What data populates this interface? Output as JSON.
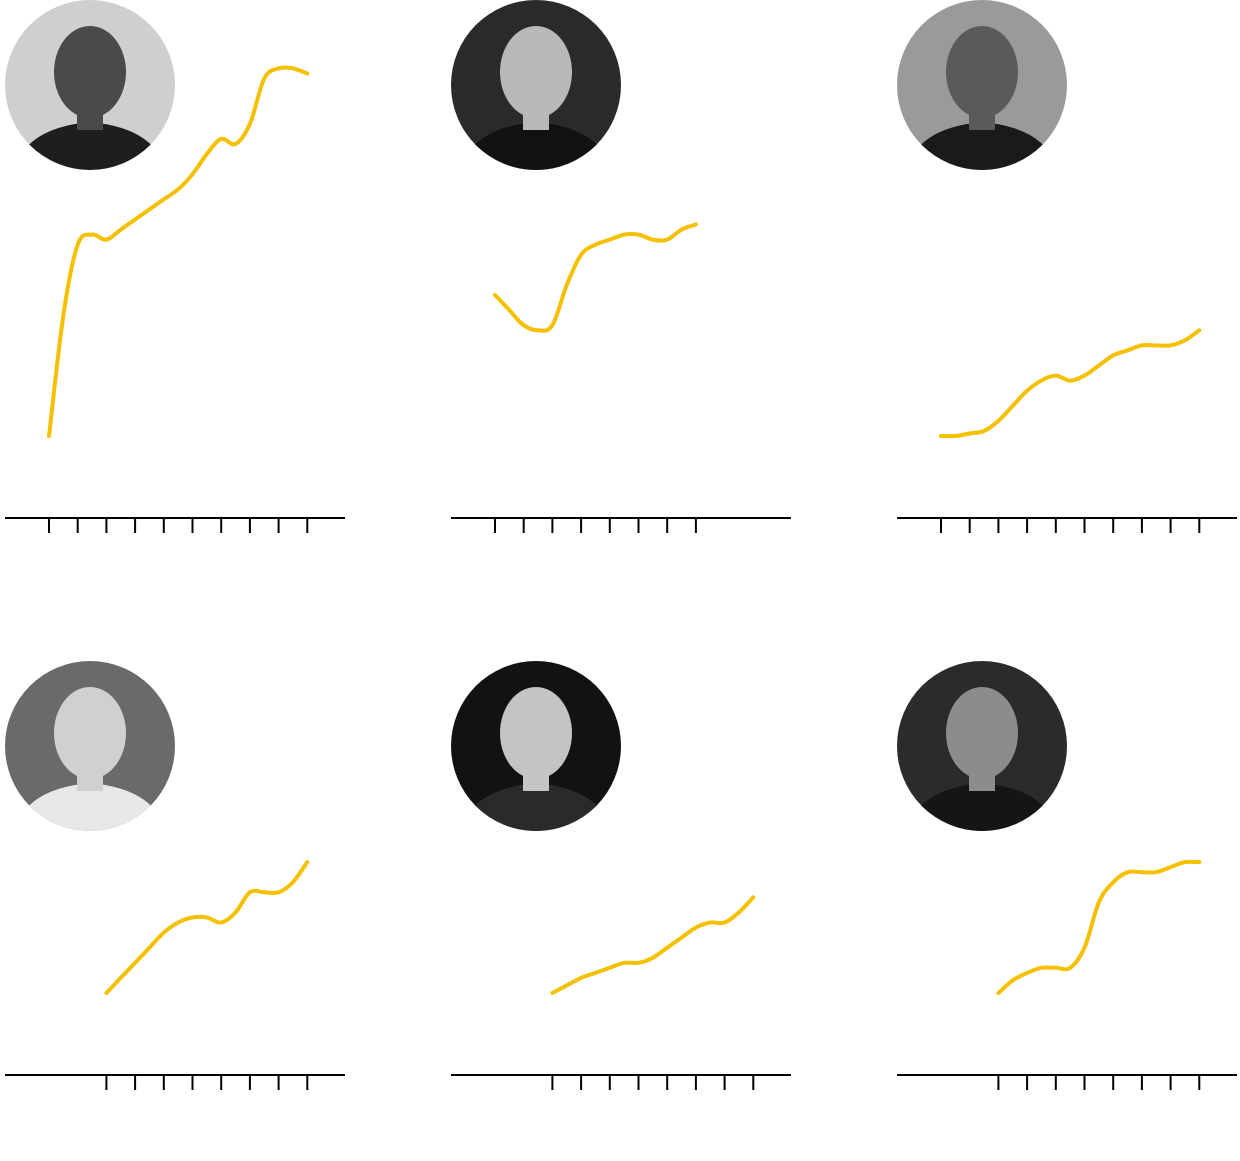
{
  "colors": {
    "line": "#F5C000",
    "axis": "#000000"
  },
  "charts": [
    {
      "portrait": {
        "icon": "portrait-man-suit-icon",
        "bg": "#cfcfcf",
        "shade": "#4a4a4a",
        "suit": "#1e1e1e"
      },
      "chart_data": {
        "type": "line",
        "ticks": 10,
        "x": [
          0,
          0.5,
          1,
          1.5,
          2,
          2.5,
          3,
          3.5,
          4,
          4.5,
          5,
          5.5,
          6,
          6.5,
          7,
          7.5,
          8,
          8.5,
          9
        ],
        "y": [
          0,
          24,
          38,
          40,
          39,
          41,
          43,
          45,
          47,
          49,
          52,
          56,
          59,
          58,
          62,
          71,
          73,
          73,
          72
        ],
        "ylim": [
          0,
          100
        ]
      }
    },
    {
      "portrait": {
        "icon": "portrait-elderly-man-icon",
        "bg": "#2a2a2a",
        "shade": "#b9b9b9",
        "suit": "#111111"
      },
      "chart_data": {
        "type": "line",
        "ticks": 8,
        "x": [
          0,
          0.5,
          1,
          1.5,
          2,
          2.5,
          3,
          3.5,
          4,
          4.5,
          5,
          5.5,
          6,
          6.5,
          7
        ],
        "y": [
          28,
          25,
          22,
          21,
          22,
          30,
          36,
          38,
          39,
          40,
          40,
          39,
          39,
          41,
          42
        ],
        "ylim": [
          0,
          100
        ]
      }
    },
    {
      "portrait": {
        "icon": "portrait-man-glasses-icon",
        "bg": "#9a9a9a",
        "shade": "#5a5a5a",
        "suit": "#1a1a1a"
      },
      "chart_data": {
        "type": "line",
        "ticks": 10,
        "x": [
          0,
          0.5,
          1,
          1.5,
          2,
          2.5,
          3,
          3.5,
          4,
          4.5,
          5,
          5.5,
          6,
          6.5,
          7,
          7.5,
          8,
          8.5,
          9
        ],
        "y": [
          0,
          0,
          0.5,
          1,
          3,
          6,
          9,
          11,
          12,
          11,
          12,
          14,
          16,
          17,
          18,
          18,
          18,
          19,
          21
        ],
        "ylim": [
          0,
          100
        ]
      }
    },
    {
      "portrait": {
        "icon": "portrait-man-shirt-icon",
        "bg": "#6a6a6a",
        "shade": "#d0d0d0",
        "suit": "#e8e8e8"
      },
      "chart_data": {
        "type": "line",
        "ticks": 8,
        "x": [
          0,
          0.5,
          1,
          1.5,
          2,
          2.5,
          3,
          3.5,
          4,
          4.5,
          5,
          5.5,
          6,
          6.5,
          7
        ],
        "y": [
          0,
          3,
          6,
          9,
          12,
          14,
          15,
          15,
          14,
          16,
          20,
          20,
          20,
          22,
          26
        ],
        "ylim": [
          0,
          100
        ]
      }
    },
    {
      "portrait": {
        "icon": "portrait-bearded-man-icon",
        "bg": "#121212",
        "shade": "#c4c4c4",
        "suit": "#2a2a2a"
      },
      "chart_data": {
        "type": "line",
        "ticks": 8,
        "x": [
          0,
          0.5,
          1,
          1.5,
          2,
          2.5,
          3,
          3.5,
          4,
          4.5,
          5,
          5.5,
          6,
          6.5,
          7
        ],
        "y": [
          0,
          1.5,
          3,
          4,
          5,
          6,
          6,
          7,
          9,
          11,
          13,
          14,
          14,
          16,
          19
        ],
        "ylim": [
          0,
          100
        ]
      }
    },
    {
      "portrait": {
        "icon": "portrait-speaker-man-icon",
        "bg": "#2b2b2b",
        "shade": "#8c8c8c",
        "suit": "#151515"
      },
      "chart_data": {
        "type": "line",
        "ticks": 8,
        "x": [
          0,
          0.5,
          1,
          1.5,
          2,
          2.5,
          3,
          3.5,
          4,
          4.5,
          5,
          5.5,
          6,
          6.5,
          7
        ],
        "y": [
          0,
          2.5,
          4,
          5,
          5,
          5,
          9,
          18,
          22,
          24,
          24,
          24,
          25,
          26,
          26
        ],
        "ylim": [
          0,
          100
        ]
      }
    }
  ]
}
